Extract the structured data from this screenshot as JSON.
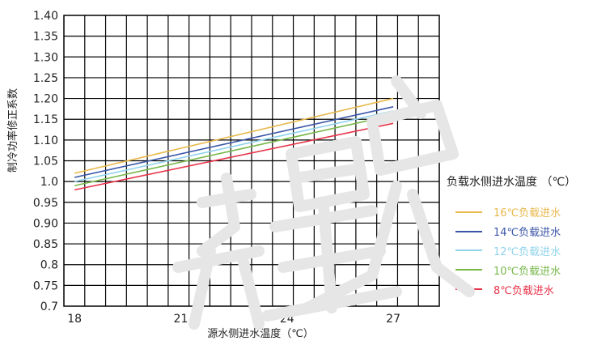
{
  "chart_data": {
    "type": "line",
    "title": "",
    "xlabel": "源水侧进水温度（℃）",
    "ylabel": "制冷功率修正系数",
    "x_ticks": [
      "18",
      "21",
      "24",
      "27"
    ],
    "y_ticks": [
      "1.40",
      "1.35",
      "1.30",
      "1.25",
      "1.20",
      "1.15",
      "1.10",
      "1.05",
      "1.0",
      "0.95",
      "0.90",
      "0.85",
      "0.8",
      "0.75",
      "0.7"
    ],
    "xlim": [
      17.7,
      28.3
    ],
    "ylim": [
      0.7,
      1.4
    ],
    "grid": true,
    "legend_title": "负载水侧进水温度 （℃）",
    "legend_position": "right",
    "series": [
      {
        "name": "16℃负载进水",
        "color": "#e8b84a",
        "x": [
          18,
          27
        ],
        "y": [
          1.02,
          1.2
        ]
      },
      {
        "name": "14℃负载进水",
        "color": "#3a56a8",
        "x": [
          18,
          27
        ],
        "y": [
          1.01,
          1.18
        ]
      },
      {
        "name": "12℃负载进水",
        "color": "#8fd3ec",
        "x": [
          18,
          27
        ],
        "y": [
          1.0,
          1.17
        ]
      },
      {
        "name": "10℃负载进水",
        "color": "#78b84a",
        "x": [
          18,
          27
        ],
        "y": [
          0.99,
          1.16
        ]
      },
      {
        "name": "8℃负载进水",
        "color": "#e8344a",
        "x": [
          18,
          27
        ],
        "y": [
          0.98,
          1.14
        ]
      }
    ]
  }
}
